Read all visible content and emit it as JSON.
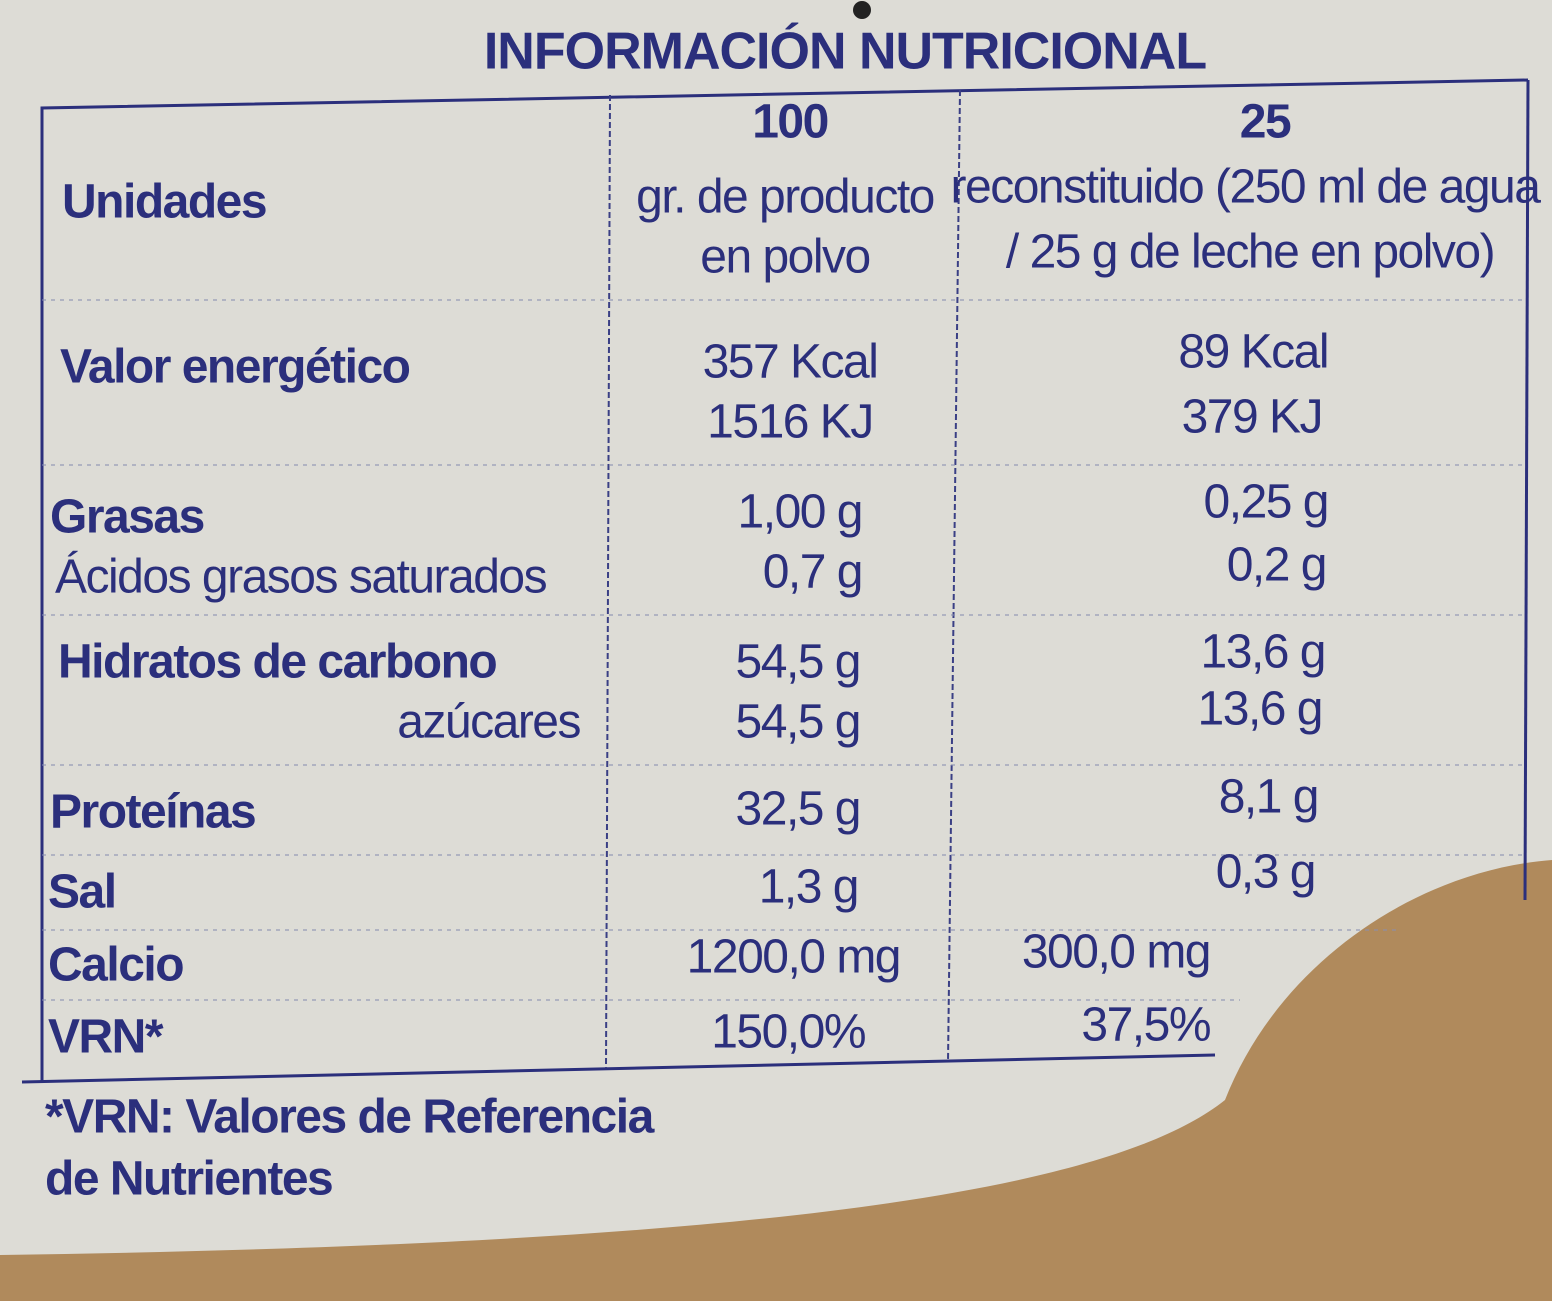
{
  "title": "INFORMACIÓN  NUTRICIONAL",
  "table": {
    "header": [
      [
        "Unidades"
      ],
      [
        "100",
        "gr. de producto",
        "en polvo"
      ],
      [
        "25",
        "reconstituido (250 ml de agua",
        "/ 25 g de leche en polvo)"
      ]
    ],
    "rows": [
      [
        [
          "Valor energético"
        ],
        [
          "357 Kcal",
          "1516 KJ"
        ],
        [
          "89 Kcal",
          "379 KJ"
        ]
      ],
      [
        [
          "Grasas",
          "Ácidos grasos saturados"
        ],
        [
          "1,00 g",
          "0,7 g"
        ],
        [
          "0,25 g",
          "0,2 g"
        ]
      ],
      [
        [
          "Hidratos de carbono",
          "azúcares"
        ],
        [
          "54,5 g",
          "54,5 g"
        ],
        [
          "13,6 g",
          "13,6 g"
        ]
      ],
      [
        [
          "Proteínas"
        ],
        [
          "32,5 g"
        ],
        [
          "8,1 g"
        ]
      ],
      [
        [
          "Sal"
        ],
        [
          "1,3 g"
        ],
        [
          "0,3 g"
        ]
      ],
      [
        [
          "Calcio"
        ],
        [
          "1200,0 mg"
        ],
        [
          "300,0 mg"
        ]
      ],
      [
        [
          "VRN*"
        ],
        [
          "150,0%"
        ],
        [
          "37,5%"
        ]
      ]
    ]
  },
  "footnote": [
    "*VRN: Valores de Referencia",
    "de Nutrientes"
  ]
}
